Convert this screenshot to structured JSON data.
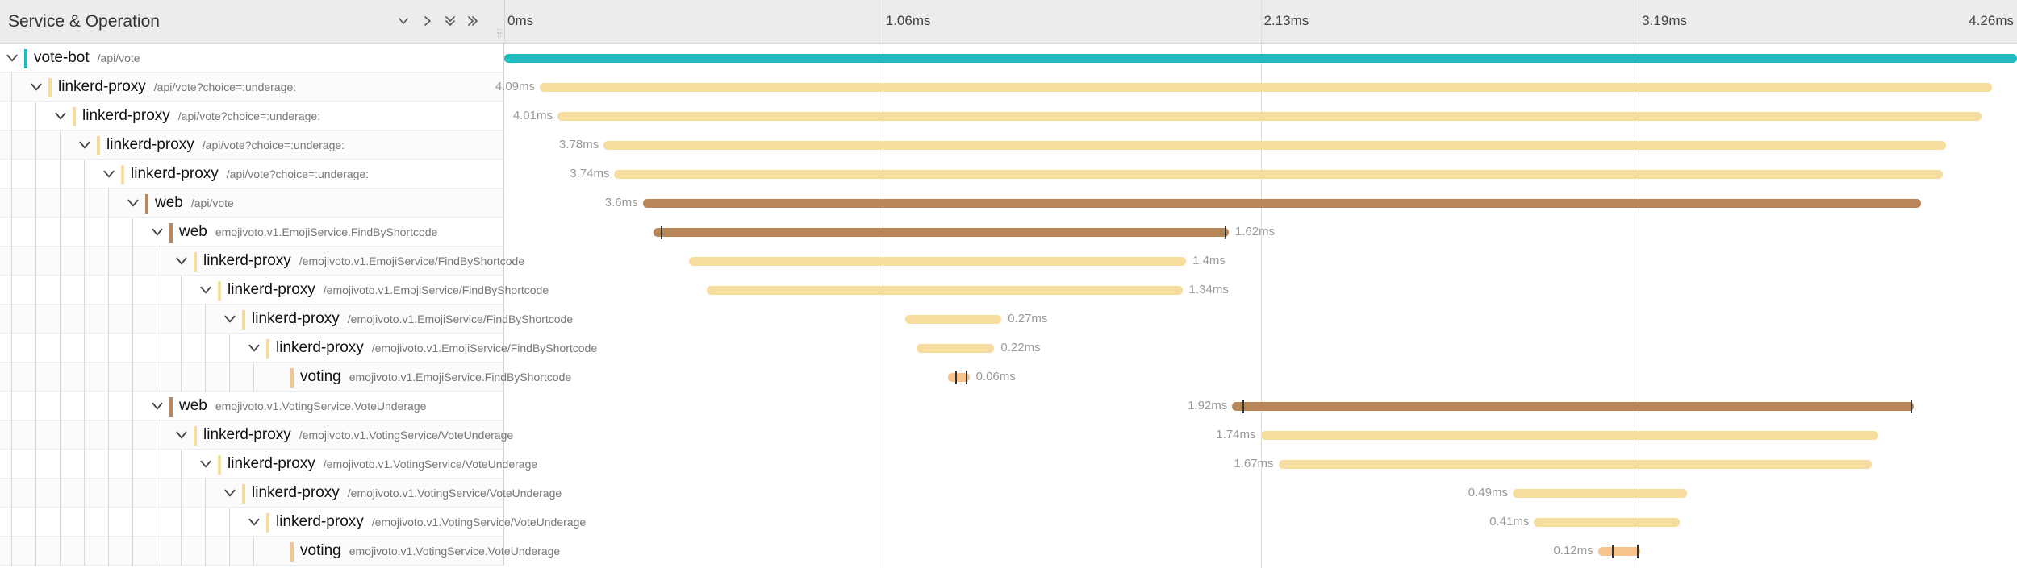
{
  "header": {
    "title": "Service & Operation",
    "controls": [
      {
        "name": "collapse-one-level-icon",
        "glyph": "chevron-down"
      },
      {
        "name": "expand-one-level-icon",
        "glyph": "chevron-right"
      },
      {
        "name": "collapse-all-icon",
        "glyph": "double-chevron-down"
      },
      {
        "name": "expand-all-icon",
        "glyph": "double-chevron-right"
      }
    ],
    "ticks": [
      "0ms",
      "1.06ms",
      "2.13ms",
      "3.19ms",
      "4.26ms"
    ]
  },
  "timeline": {
    "total_ms": 4.26
  },
  "colors": {
    "vote-bot": "#1fbcbf",
    "linkerd-proxy": "#f7dc9f",
    "web": "#b98659",
    "voting": "#f7c490"
  },
  "spans": [
    {
      "depth": 0,
      "service": "vote-bot",
      "operation": "/api/vote",
      "color_key": "vote-bot",
      "start_ms": 0.0,
      "duration_ms": 4.26,
      "duration_label": "",
      "label_side": "none"
    },
    {
      "depth": 1,
      "service": "linkerd-proxy",
      "operation": "/api/vote?choice=:underage:",
      "color_key": "linkerd-proxy",
      "start_ms": 0.1,
      "duration_ms": 4.09,
      "duration_label": "4.09ms",
      "label_side": "left"
    },
    {
      "depth": 2,
      "service": "linkerd-proxy",
      "operation": "/api/vote?choice=:underage:",
      "color_key": "linkerd-proxy",
      "start_ms": 0.15,
      "duration_ms": 4.01,
      "duration_label": "4.01ms",
      "label_side": "left"
    },
    {
      "depth": 3,
      "service": "linkerd-proxy",
      "operation": "/api/vote?choice=:underage:",
      "color_key": "linkerd-proxy",
      "start_ms": 0.28,
      "duration_ms": 3.78,
      "duration_label": "3.78ms",
      "label_side": "left"
    },
    {
      "depth": 4,
      "service": "linkerd-proxy",
      "operation": "/api/vote?choice=:underage:",
      "color_key": "linkerd-proxy",
      "start_ms": 0.31,
      "duration_ms": 3.74,
      "duration_label": "3.74ms",
      "label_side": "left"
    },
    {
      "depth": 5,
      "service": "web",
      "operation": "/api/vote",
      "color_key": "web",
      "start_ms": 0.39,
      "duration_ms": 3.6,
      "duration_label": "3.6ms",
      "label_side": "left"
    },
    {
      "depth": 6,
      "service": "web",
      "operation": "emojivoto.v1.EmojiService.FindByShortcode",
      "color_key": "web",
      "start_ms": 0.42,
      "duration_ms": 1.62,
      "duration_label": "1.62ms",
      "label_side": "right",
      "marks_ms": [
        0.44,
        2.03
      ]
    },
    {
      "depth": 7,
      "service": "linkerd-proxy",
      "operation": "/emojivoto.v1.EmojiService/FindByShortcode",
      "color_key": "linkerd-proxy",
      "start_ms": 0.52,
      "duration_ms": 1.4,
      "duration_label": "1.4ms",
      "label_side": "right"
    },
    {
      "depth": 8,
      "service": "linkerd-proxy",
      "operation": "/emojivoto.v1.EmojiService/FindByShortcode",
      "color_key": "linkerd-proxy",
      "start_ms": 0.57,
      "duration_ms": 1.34,
      "duration_label": "1.34ms",
      "label_side": "right"
    },
    {
      "depth": 9,
      "service": "linkerd-proxy",
      "operation": "/emojivoto.v1.EmojiService/FindByShortcode",
      "color_key": "linkerd-proxy",
      "start_ms": 1.13,
      "duration_ms": 0.27,
      "duration_label": "0.27ms",
      "label_side": "right"
    },
    {
      "depth": 10,
      "service": "linkerd-proxy",
      "operation": "/emojivoto.v1.EmojiService/FindByShortcode",
      "color_key": "linkerd-proxy",
      "start_ms": 1.16,
      "duration_ms": 0.22,
      "duration_label": "0.22ms",
      "label_side": "right"
    },
    {
      "depth": 11,
      "service": "voting",
      "operation": "emojivoto.v1.EmojiService.FindByShortcode",
      "color_key": "voting",
      "start_ms": 1.25,
      "duration_ms": 0.06,
      "duration_label": "0.06ms",
      "label_side": "right",
      "marks_ms": [
        1.27,
        1.3
      ]
    },
    {
      "depth": 6,
      "service": "web",
      "operation": "emojivoto.v1.VotingService.VoteUnderage",
      "color_key": "web",
      "start_ms": 2.05,
      "duration_ms": 1.92,
      "duration_label": "1.92ms",
      "label_side": "left",
      "marks_ms": [
        2.08,
        3.96
      ]
    },
    {
      "depth": 7,
      "service": "linkerd-proxy",
      "operation": "/emojivoto.v1.VotingService/VoteUnderage",
      "color_key": "linkerd-proxy",
      "start_ms": 2.13,
      "duration_ms": 1.74,
      "duration_label": "1.74ms",
      "label_side": "left"
    },
    {
      "depth": 8,
      "service": "linkerd-proxy",
      "operation": "/emojivoto.v1.VotingService/VoteUnderage",
      "color_key": "linkerd-proxy",
      "start_ms": 2.18,
      "duration_ms": 1.67,
      "duration_label": "1.67ms",
      "label_side": "left"
    },
    {
      "depth": 9,
      "service": "linkerd-proxy",
      "operation": "/emojivoto.v1.VotingService/VoteUnderage",
      "color_key": "linkerd-proxy",
      "start_ms": 2.84,
      "duration_ms": 0.49,
      "duration_label": "0.49ms",
      "label_side": "left"
    },
    {
      "depth": 10,
      "service": "linkerd-proxy",
      "operation": "/emojivoto.v1.VotingService/VoteUnderage",
      "color_key": "linkerd-proxy",
      "start_ms": 2.9,
      "duration_ms": 0.41,
      "duration_label": "0.41ms",
      "label_side": "left"
    },
    {
      "depth": 11,
      "service": "voting",
      "operation": "emojivoto.v1.VotingService.VoteUnderage",
      "color_key": "voting",
      "start_ms": 3.08,
      "duration_ms": 0.12,
      "duration_label": "0.12ms",
      "label_side": "left",
      "marks_ms": [
        3.12,
        3.19
      ]
    }
  ]
}
